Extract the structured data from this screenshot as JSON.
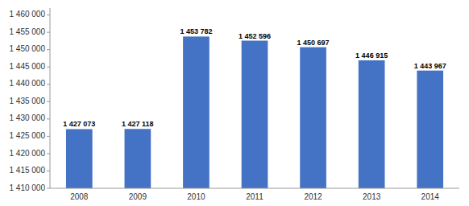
{
  "chart_data": {
    "type": "bar",
    "categories": [
      "2008",
      "2009",
      "2010",
      "2011",
      "2012",
      "2013",
      "2014"
    ],
    "values": [
      1427073,
      1427118,
      1453782,
      1452596,
      1450697,
      1446915,
      1443967
    ],
    "value_labels": [
      "1 427 073",
      "1 427 118",
      "1 453 782",
      "1 452 596",
      "1 450 697",
      "1 446 915",
      "1 443 967"
    ],
    "color": "#4472C4",
    "ylim": [
      1410000,
      1462000
    ],
    "yticks": [
      {
        "value": 1410000,
        "label": "1 410 000"
      },
      {
        "value": 1415000,
        "label": "1 415 000"
      },
      {
        "value": 1420000,
        "label": "1 420 000"
      },
      {
        "value": 1425000,
        "label": "1 425 000"
      },
      {
        "value": 1430000,
        "label": "1 430 000"
      },
      {
        "value": 1435000,
        "label": "1 435 000"
      },
      {
        "value": 1440000,
        "label": "1 440 000"
      },
      {
        "value": 1445000,
        "label": "1 445 000"
      },
      {
        "value": 1450000,
        "label": "1 450 000"
      },
      {
        "value": 1455000,
        "label": "1 455 000"
      },
      {
        "value": 1460000,
        "label": "1 460 000"
      }
    ],
    "grid": false,
    "data_labels": true
  }
}
